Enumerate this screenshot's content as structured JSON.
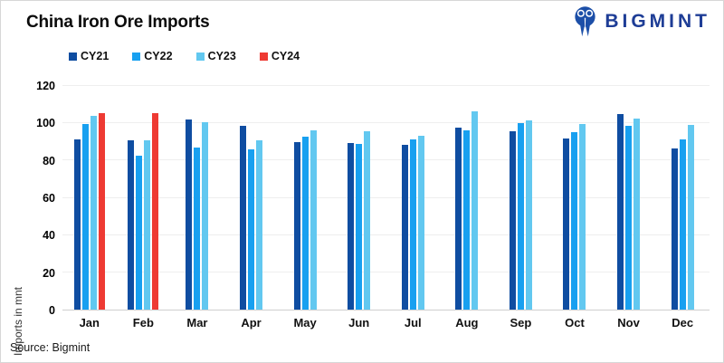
{
  "header": {
    "title": "China Iron Ore Imports",
    "logo_text": "BIGMINT",
    "logo_color": "#1e3d96",
    "logo_icon": "bigmint-m-figures-icon"
  },
  "footer": {
    "source": "Source: Bigmint"
  },
  "chart_data": {
    "type": "bar",
    "title": "China Iron Ore Imports",
    "xlabel": "",
    "ylabel": "Imports in mnt",
    "ylim": [
      0,
      120
    ],
    "yticks": [
      0,
      20,
      40,
      60,
      80,
      100,
      120
    ],
    "grid": true,
    "legend_position": "top",
    "categories": [
      "Jan",
      "Feb",
      "Mar",
      "Apr",
      "May",
      "Jun",
      "Jul",
      "Aug",
      "Sep",
      "Oct",
      "Nov",
      "Dec"
    ],
    "series": [
      {
        "name": "CY21",
        "color": "#0f4da1",
        "values": [
          91.4,
          91.0,
          102.1,
          98.6,
          89.8,
          89.4,
          88.5,
          97.5,
          95.6,
          91.6,
          104.9,
          86.5
        ]
      },
      {
        "name": "CY22",
        "color": "#18a0f0",
        "values": [
          99.8,
          82.4,
          87.2,
          86.2,
          92.8,
          88.9,
          91.2,
          96.4,
          99.9,
          95.1,
          98.8,
          91.3
        ]
      },
      {
        "name": "CY23",
        "color": "#62c8f0",
        "values": [
          104.0,
          91.0,
          100.4,
          90.9,
          96.2,
          95.5,
          93.5,
          106.4,
          101.4,
          99.5,
          102.7,
          99.1
        ]
      },
      {
        "name": "CY24",
        "color": "#ee3a33",
        "values": [
          105.4,
          105.3,
          null,
          null,
          null,
          null,
          null,
          null,
          null,
          null,
          null,
          null
        ]
      }
    ]
  }
}
